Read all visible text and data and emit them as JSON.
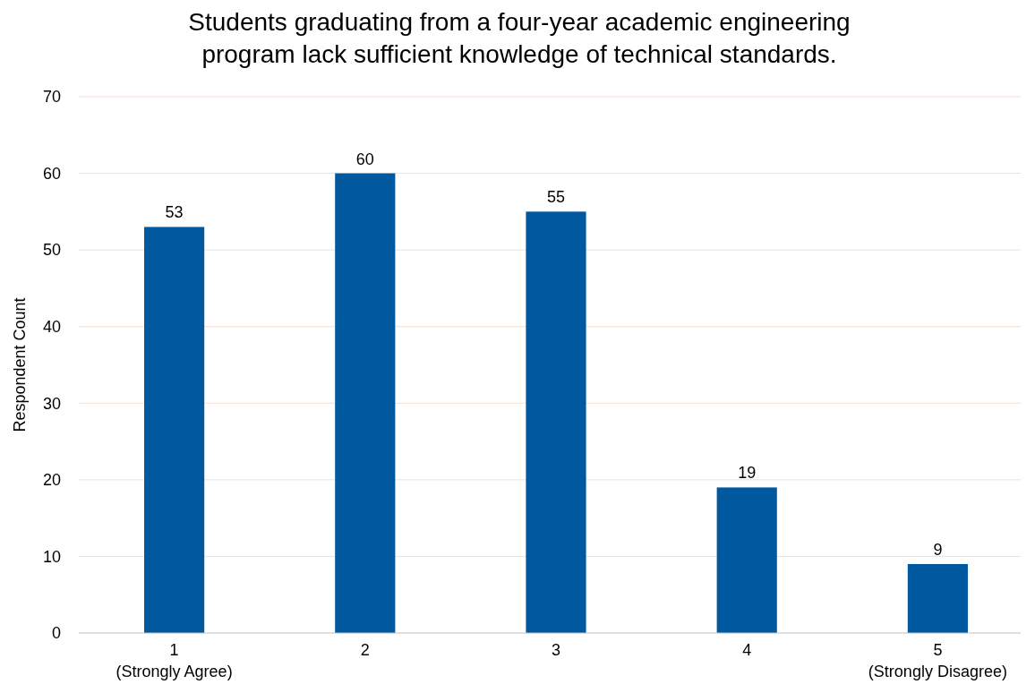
{
  "chart_data": {
    "type": "bar",
    "title": "Students graduating from a four-year academic engineering\nprogram lack sufficient knowledge of technical standards.",
    "ylabel": "Respondent Count",
    "categories": [
      "1\n(Strongly Agree)",
      "2",
      "3",
      "4",
      "5\n(Strongly Disagree)"
    ],
    "values": [
      53,
      60,
      55,
      19,
      9
    ],
    "color": "#00589f",
    "ylim": [
      0,
      70
    ],
    "yticks": [
      0,
      10,
      20,
      30,
      40,
      50,
      60,
      70
    ],
    "grid": "y",
    "data_labels": true
  }
}
